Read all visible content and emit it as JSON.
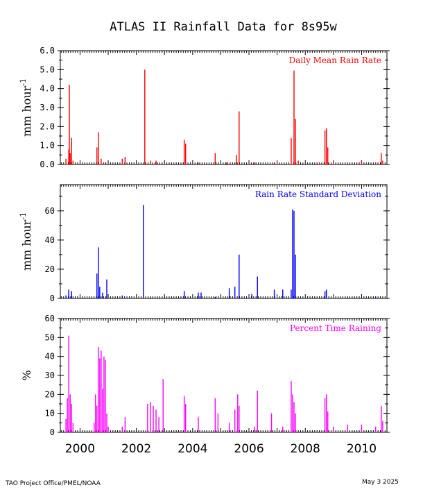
{
  "title": "ATLAS II Rainfall Data for 8s95w",
  "footer": {
    "left": "TAO Project Office/PMEL/NOAA",
    "right": "May  3 2025"
  },
  "x_axis": {
    "tick_labels": [
      "2000",
      "2002",
      "2004",
      "2006",
      "2008",
      "2010"
    ],
    "xlim": [
      1999.3,
      2010.9
    ]
  },
  "colors": {
    "daily_mean": "#ff0000",
    "std_dev": "#0000ff",
    "percent": "#ff00ff"
  },
  "chart_data": [
    {
      "type": "line",
      "title": "Daily Mean Rain Rate",
      "ylabel": "mm hour",
      "ylabel_sup": "-1",
      "ylim": [
        0,
        6
      ],
      "y_ticks": [
        "0.0",
        "1.0",
        "2.0",
        "3.0",
        "4.0",
        "5.0",
        "6.0"
      ],
      "series": [
        {
          "name": "Daily Mean Rain Rate",
          "x": [
            1999.5,
            1999.6,
            1999.62,
            1999.65,
            1999.7,
            1999.75,
            2000.6,
            2000.65,
            2000.75,
            2000.9,
            2001.5,
            2001.6,
            2002.3,
            2002.5,
            2002.7,
            2003.0,
            2003.7,
            2003.75,
            2004.2,
            2004.8,
            2005.2,
            2005.55,
            2005.65,
            2006.2,
            2006.9,
            2007.5,
            2007.6,
            2007.65,
            2007.75,
            2008.5,
            2008.7,
            2008.75,
            2008.8,
            2009.0,
            2009.5,
            2010.0,
            2010.5,
            2010.7,
            2010.75
          ],
          "values": [
            0.3,
            0.8,
            4.2,
            0.6,
            1.4,
            0.2,
            0.9,
            1.7,
            0.3,
            0.1,
            0.3,
            0.4,
            5.0,
            0.2,
            0.2,
            0.1,
            1.3,
            1.1,
            0.1,
            0.6,
            0.1,
            0.5,
            2.8,
            0.1,
            0.1,
            1.4,
            4.95,
            2.4,
            0.2,
            0.1,
            1.8,
            1.9,
            0.9,
            0.1,
            0.1,
            0.2,
            0.1,
            0.6,
            0.2
          ]
        }
      ]
    },
    {
      "type": "line",
      "title": "Rain Rate Standard Deviation",
      "ylabel": "mm hour",
      "ylabel_sup": "-1",
      "ylim": [
        0,
        78
      ],
      "y_ticks": [
        "0",
        "20",
        "40",
        "60"
      ],
      "series": [
        {
          "name": "Rain Rate Standard Deviation",
          "x": [
            1999.5,
            1999.6,
            1999.7,
            2000.6,
            2000.65,
            2000.7,
            2000.8,
            2000.95,
            2001.5,
            2002.25,
            2002.5,
            2003.0,
            2003.7,
            2004.2,
            2004.3,
            2004.8,
            2005.3,
            2005.5,
            2005.65,
            2006.1,
            2006.3,
            2006.9,
            2007.2,
            2007.5,
            2007.55,
            2007.6,
            2007.65,
            2008.7,
            2008.75,
            2009.5,
            2010.5
          ],
          "values": [
            2,
            6,
            5,
            17,
            35,
            8,
            4,
            13,
            2,
            64,
            1,
            1,
            5,
            4,
            4,
            1,
            7,
            8,
            30,
            3,
            15,
            6,
            6,
            6,
            61,
            60,
            30,
            5,
            6,
            1,
            1
          ]
        }
      ]
    },
    {
      "type": "line",
      "title": "Percent Time Raining",
      "ylabel": "%",
      "ylim": [
        0,
        60
      ],
      "y_ticks": [
        "0",
        "10",
        "20",
        "30",
        "40",
        "50",
        "60"
      ],
      "series": [
        {
          "name": "Percent Time Raining",
          "x": [
            1999.5,
            1999.55,
            1999.6,
            1999.65,
            1999.7,
            1999.75,
            2000.5,
            2000.55,
            2000.6,
            2000.65,
            2000.7,
            2000.75,
            2000.8,
            2000.85,
            2000.9,
            2000.95,
            2001.0,
            2001.5,
            2001.6,
            2002.4,
            2002.5,
            2002.6,
            2002.7,
            2002.8,
            2002.95,
            2003.7,
            2003.75,
            2004.2,
            2004.8,
            2004.9,
            2005.3,
            2005.5,
            2005.6,
            2005.65,
            2006.2,
            2006.3,
            2006.8,
            2007.2,
            2007.5,
            2007.55,
            2007.6,
            2007.65,
            2008.7,
            2008.75,
            2008.8,
            2009.0,
            2009.5,
            2010.0,
            2010.5,
            2010.7,
            2010.75
          ],
          "values": [
            7,
            18,
            51,
            20,
            15,
            5,
            5,
            20,
            14,
            45,
            39,
            43,
            23,
            40,
            38,
            10,
            3,
            3,
            8,
            15,
            16,
            14,
            12,
            8,
            28,
            19,
            15,
            8,
            18,
            10,
            5,
            12,
            20,
            14,
            3,
            22,
            10,
            3,
            27,
            20,
            16,
            10,
            18,
            20,
            11,
            3,
            4,
            4,
            3,
            14,
            6
          ]
        }
      ]
    }
  ]
}
